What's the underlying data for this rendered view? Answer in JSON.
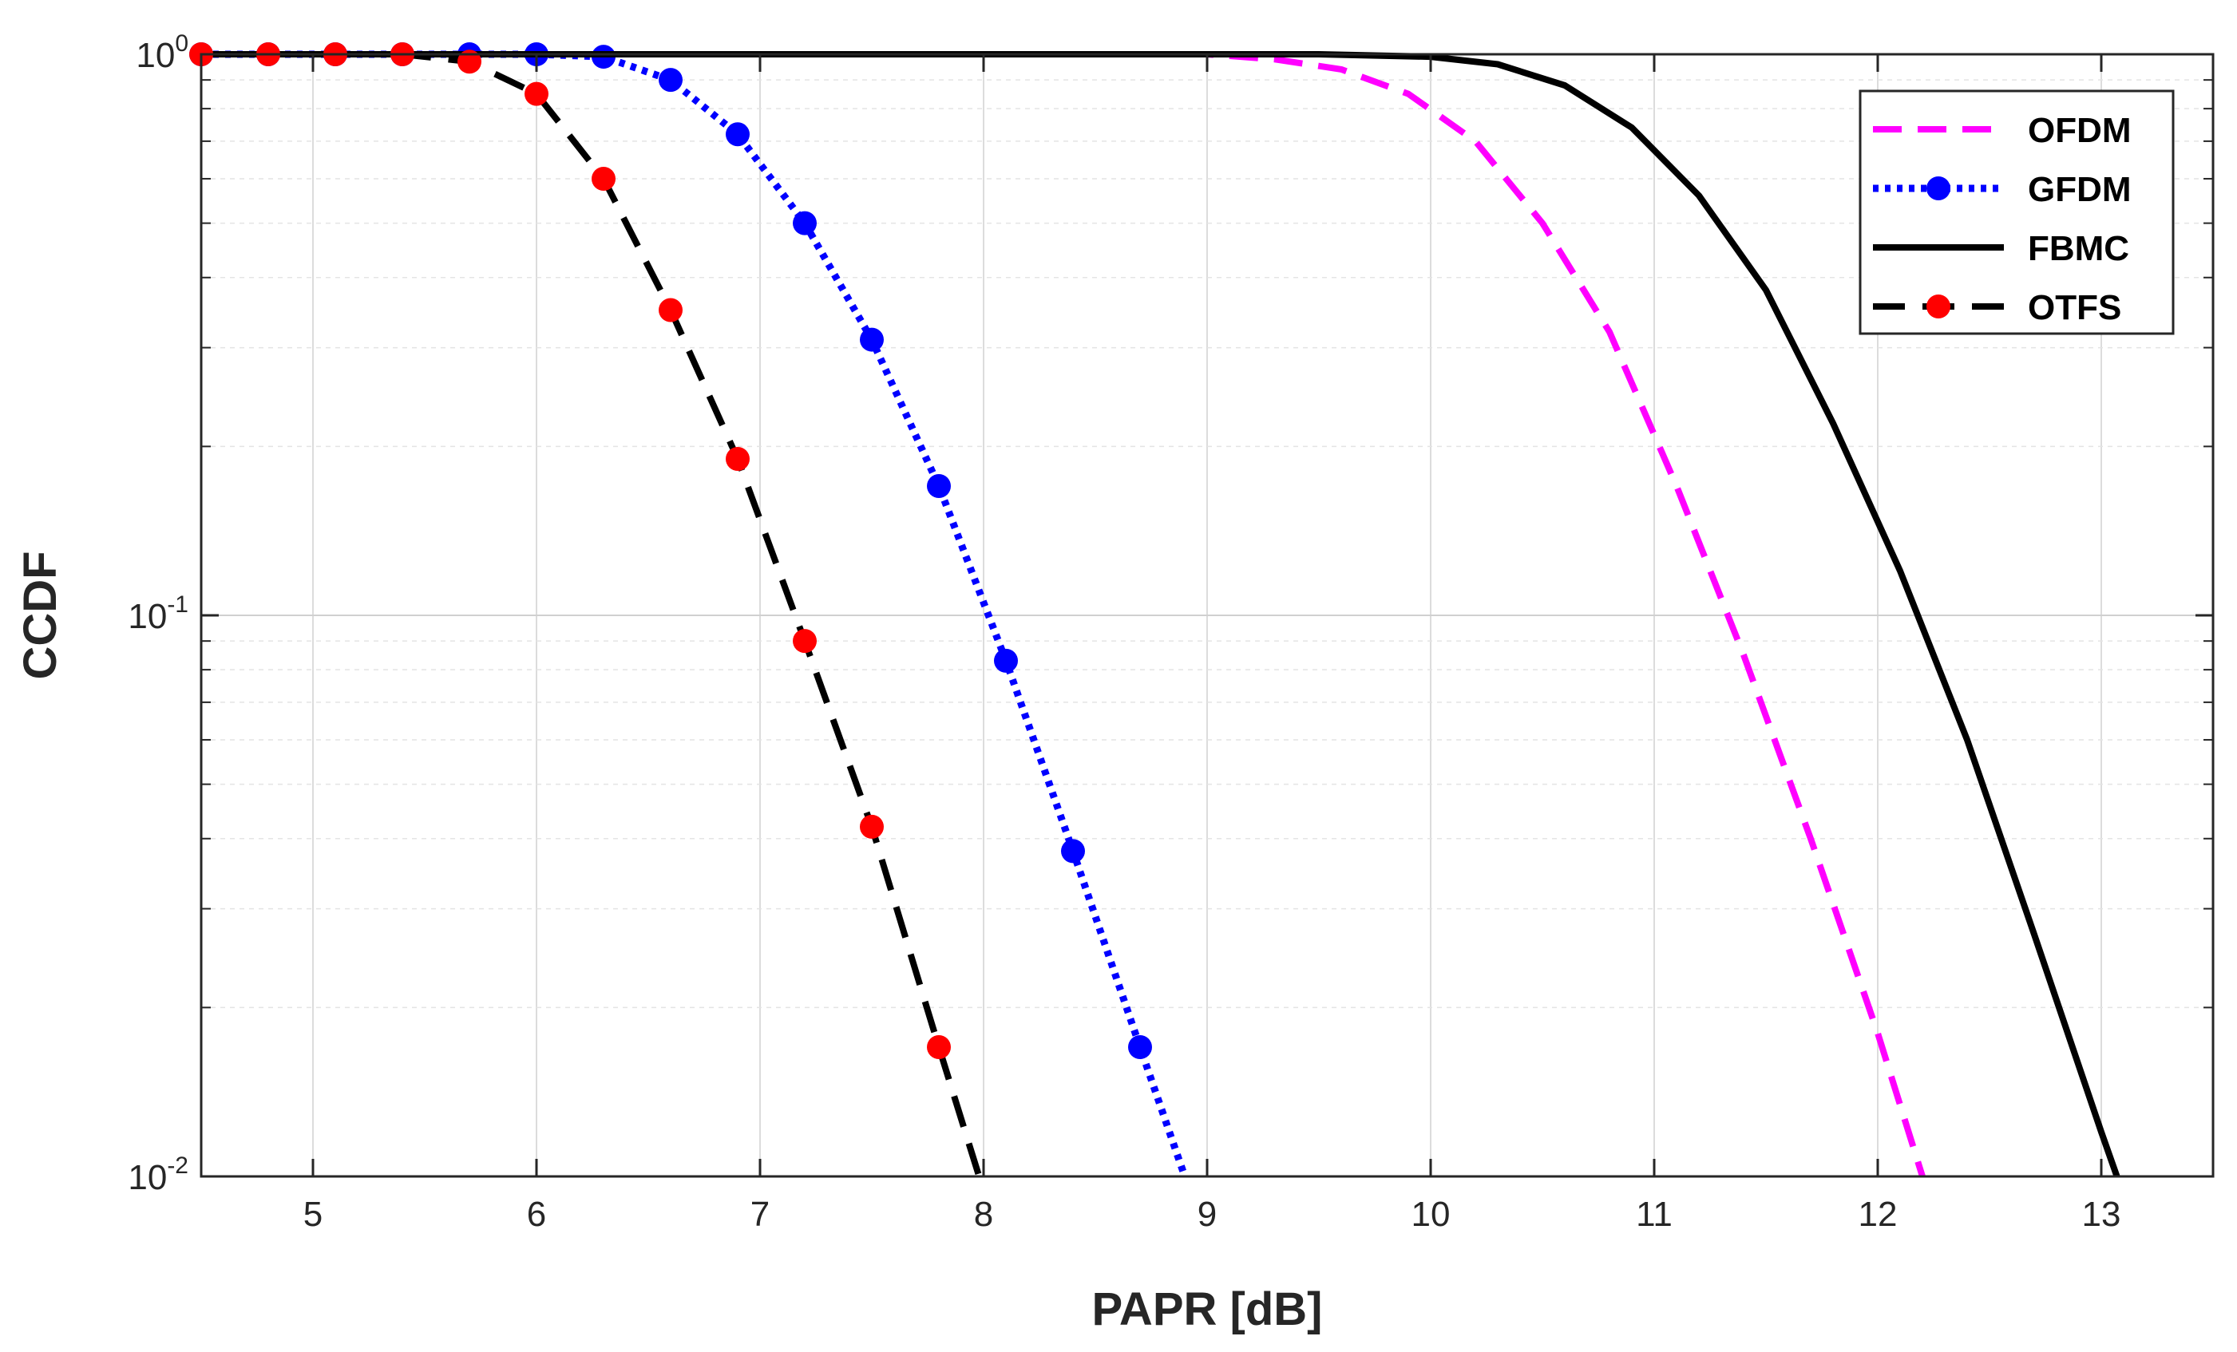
{
  "chart_data": {
    "type": "line",
    "title": "",
    "xlabel": "PAPR [dB]",
    "ylabel": "CCDF",
    "xlim": [
      4.5,
      13.5
    ],
    "ylim": [
      0.01,
      1
    ],
    "yscale": "log",
    "grid": true,
    "legend_position": "top-right",
    "x_ticks": [
      5,
      6,
      7,
      8,
      9,
      10,
      11,
      12,
      13
    ],
    "x_tick_labels": [
      "5",
      "6",
      "7",
      "8",
      "9",
      "10",
      "11",
      "12",
      "13"
    ],
    "y_ticks": [
      {
        "value": 1,
        "base": "10",
        "exp": "0"
      },
      {
        "value": 0.1,
        "base": "10",
        "exp": "-1"
      },
      {
        "value": 0.01,
        "base": "10",
        "exp": "-2"
      }
    ],
    "series": [
      {
        "name": "OFDM",
        "color": "#ff00ff",
        "line_style": "dashed",
        "marker": "none",
        "x": [
          4.5,
          8.5,
          9.0,
          9.3,
          9.6,
          9.9,
          10.2,
          10.5,
          10.8,
          11.1,
          11.4,
          11.7,
          12.0,
          12.2
        ],
        "y": [
          1.0,
          1.0,
          1.0,
          0.98,
          0.94,
          0.85,
          0.7,
          0.5,
          0.32,
          0.17,
          0.085,
          0.04,
          0.018,
          0.01
        ]
      },
      {
        "name": "GFDM",
        "color": "#0000ff",
        "line_style": "dotted",
        "marker": "circle",
        "x": [
          4.5,
          4.8,
          5.1,
          5.4,
          5.7,
          6.0,
          6.3,
          6.6,
          6.9,
          7.2,
          7.5,
          7.8,
          8.1,
          8.4,
          8.7,
          8.9
        ],
        "y": [
          1.0,
          1.0,
          1.0,
          1.0,
          1.0,
          1.0,
          0.99,
          0.9,
          0.72,
          0.5,
          0.31,
          0.17,
          0.083,
          0.038,
          0.017,
          0.01
        ]
      },
      {
        "name": "FBMC",
        "color": "#000000",
        "line_style": "solid",
        "marker": "none",
        "x": [
          4.5,
          9.5,
          10.0,
          10.3,
          10.6,
          10.9,
          11.2,
          11.5,
          11.8,
          12.1,
          12.4,
          12.7,
          13.0,
          13.07
        ],
        "y": [
          1.0,
          1.0,
          0.99,
          0.96,
          0.88,
          0.74,
          0.56,
          0.38,
          0.22,
          0.12,
          0.06,
          0.027,
          0.012,
          0.01
        ]
      },
      {
        "name": "OTFS",
        "color": "#000000",
        "marker_color": "#ff0000",
        "line_style": "dashed",
        "marker": "circle",
        "x": [
          4.5,
          4.8,
          5.1,
          5.4,
          5.7,
          6.0,
          6.3,
          6.6,
          6.9,
          7.2,
          7.5,
          7.8,
          7.98
        ],
        "y": [
          1.0,
          1.0,
          1.0,
          1.0,
          0.97,
          0.85,
          0.6,
          0.35,
          0.19,
          0.09,
          0.042,
          0.017,
          0.01
        ],
        "marker_count": 12
      }
    ]
  }
}
